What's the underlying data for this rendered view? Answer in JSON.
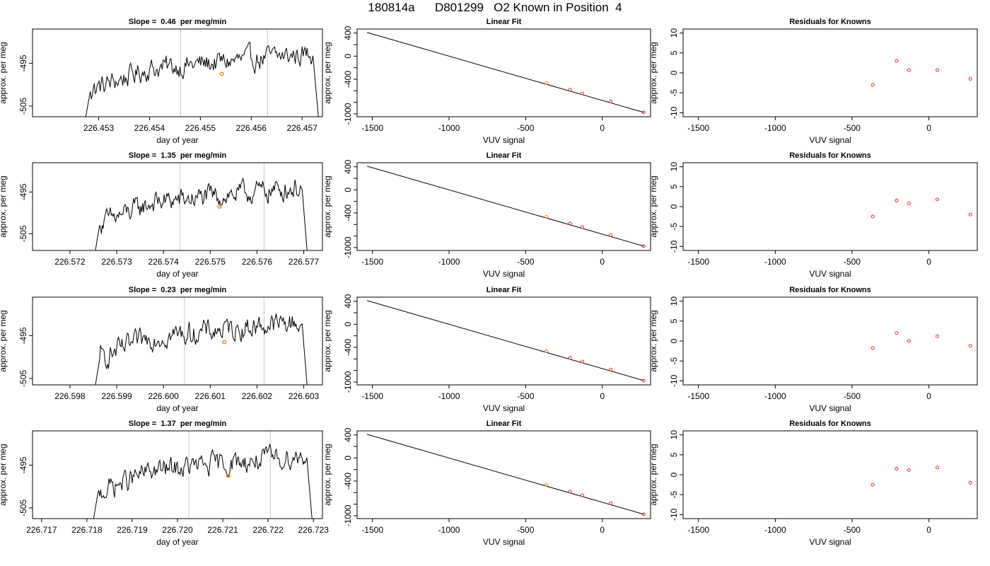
{
  "figure_title": "180814a      D801299   O2 Known in Position  4",
  "colors": {
    "trace": "#000000",
    "vline": "#c8c8c8",
    "point": "#d4352f",
    "highlight": "#e88a1a",
    "axis": "#000000"
  },
  "rows": [
    {
      "time": {
        "title": "Slope =  0.46  per meg/min",
        "xlabel": "day of year",
        "ylabel": "approx. per meg",
        "x_ticks": [
          "226.453",
          "226.454",
          "226.455",
          "226.456",
          "226.457"
        ],
        "x_tick_values": [
          226.453,
          226.454,
          226.455,
          226.456,
          226.457
        ],
        "y_ticks": [
          "-505",
          "-495"
        ],
        "y_tick_values": [
          -505,
          -495
        ],
        "xlim": [
          226.4517,
          226.4574
        ],
        "ylim": [
          -507.5,
          -487.0
        ],
        "vlines": [
          226.45461,
          226.45632
        ],
        "highlight": {
          "x": 226.45542,
          "y": -497.5
        },
        "trace_start": 226.4527,
        "trace_end": 226.45735
      },
      "fit": {
        "title": "Linear Fit",
        "xlabel": "VUV signal",
        "ylabel": "approx. per meg",
        "x_ticks": [
          "-1500",
          "-1000",
          "-500",
          "0"
        ],
        "x_tick_values": [
          -1500,
          -1000,
          -500,
          0
        ],
        "y_ticks": [
          "-1000",
          "-800",
          "-600",
          "-400",
          "-200",
          "0",
          "200",
          "400"
        ],
        "y_labeled": [
          "-1000",
          "-400",
          "0",
          "400"
        ],
        "y_tick_values": [
          -1000,
          -800,
          -600,
          -400,
          -200,
          0,
          200,
          400
        ],
        "xlim": [
          -1600,
          315
        ],
        "ylim": [
          -1050,
          470
        ],
        "line": {
          "x": [
            -1535,
            270
          ],
          "y": [
            410,
            -975
          ]
        },
        "points_x": [
          -365,
          -210,
          -130,
          55,
          270
        ],
        "points_y": [
          -465,
          -581,
          -645,
          -785,
          -975
        ],
        "highlight_index": 0
      },
      "resid": {
        "title": "Residuals for Knowns",
        "xlabel": "VUV signal",
        "ylabel": "approx. per meg",
        "x_ticks": [
          "-1500",
          "-1000",
          "-500",
          "0"
        ],
        "x_tick_values": [
          -1500,
          -1000,
          -500,
          0
        ],
        "y_ticks": [
          "-10",
          "-5",
          "0",
          "5",
          "10"
        ],
        "y_tick_values": [
          -10,
          -5,
          0,
          5,
          10
        ],
        "xlim": [
          -1600,
          315
        ],
        "ylim": [
          -11,
          11
        ],
        "points_x": [
          -365,
          -210,
          -130,
          55,
          270
        ],
        "points_y": [
          -3.0,
          3.0,
          0.7,
          0.7,
          -1.5
        ]
      }
    },
    {
      "time": {
        "title": "Slope =  1.35  per meg/min",
        "xlabel": "day of year",
        "ylabel": "approx. per meg",
        "x_ticks": [
          "226.572",
          "226.573",
          "226.574",
          "226.575",
          "226.576",
          "226.577"
        ],
        "x_tick_values": [
          226.572,
          226.573,
          226.574,
          226.575,
          226.576,
          226.577
        ],
        "y_ticks": [
          "-505",
          "-495"
        ],
        "y_tick_values": [
          -505,
          -495
        ],
        "xlim": [
          226.5712,
          226.5774
        ],
        "ylim": [
          -509.0,
          -488.0
        ],
        "vlines": [
          226.57435,
          226.57615
        ],
        "highlight": {
          "x": 226.5752,
          "y": -498.5
        },
        "trace_start": 226.5725,
        "trace_end": 226.5771
      },
      "fit": {
        "title": "Linear Fit",
        "xlabel": "VUV signal",
        "ylabel": "approx. per meg",
        "x_ticks": [
          "-1500",
          "-1000",
          "-500",
          "0"
        ],
        "x_tick_values": [
          -1500,
          -1000,
          -500,
          0
        ],
        "y_ticks": [
          "-1000",
          "-800",
          "-600",
          "-400",
          "-200",
          "0",
          "200",
          "400"
        ],
        "y_labeled": [
          "-1000",
          "-400",
          "0",
          "400"
        ],
        "y_tick_values": [
          -1000,
          -800,
          -600,
          -400,
          -200,
          0,
          200,
          400
        ],
        "xlim": [
          -1600,
          315
        ],
        "ylim": [
          -1050,
          470
        ],
        "line": {
          "x": [
            -1535,
            270
          ],
          "y": [
            410,
            -975
          ]
        },
        "points_x": [
          -365,
          -210,
          -130,
          55,
          270
        ],
        "points_y": [
          -465,
          -581,
          -645,
          -785,
          -975
        ],
        "highlight_index": 0
      },
      "resid": {
        "title": "Residuals for Knowns",
        "xlabel": "VUV signal",
        "ylabel": "approx. per meg",
        "x_ticks": [
          "-1500",
          "-1000",
          "-500",
          "0"
        ],
        "x_tick_values": [
          -1500,
          -1000,
          -500,
          0
        ],
        "y_ticks": [
          "-10",
          "-5",
          "0",
          "5",
          "10"
        ],
        "y_tick_values": [
          -10,
          -5,
          0,
          5,
          10
        ],
        "xlim": [
          -1600,
          315
        ],
        "ylim": [
          -11,
          11
        ],
        "points_x": [
          -365,
          -210,
          -130,
          55,
          270
        ],
        "points_y": [
          -2.5,
          1.5,
          0.8,
          1.8,
          -2.0
        ]
      }
    },
    {
      "time": {
        "title": "Slope =  0.23  per meg/min",
        "xlabel": "day of year",
        "ylabel": "approx. per meg",
        "x_ticks": [
          "226.598",
          "226.599",
          "226.600",
          "226.601",
          "226.602",
          "226.603"
        ],
        "x_tick_values": [
          226.598,
          226.599,
          226.6,
          226.601,
          226.602,
          226.603
        ],
        "y_ticks": [
          "-505",
          "-495"
        ],
        "y_tick_values": [
          -505,
          -495
        ],
        "xlim": [
          226.5972,
          226.6034
        ],
        "ylim": [
          -506.5,
          -486.0
        ],
        "vlines": [
          226.60045,
          226.60215
        ],
        "highlight": {
          "x": 226.6013,
          "y": -496.5
        },
        "trace_start": 226.5985,
        "trace_end": 226.6031
      },
      "fit": {
        "title": "Linear Fit",
        "xlabel": "VUV signal",
        "ylabel": "approx. per meg",
        "x_ticks": [
          "-1500",
          "-1000",
          "-500",
          "0"
        ],
        "x_tick_values": [
          -1500,
          -1000,
          -500,
          0
        ],
        "y_ticks": [
          "-1000",
          "-800",
          "-600",
          "-400",
          "-200",
          "0",
          "200",
          "400"
        ],
        "y_labeled": [
          "-1000",
          "-400",
          "0",
          "400"
        ],
        "y_tick_values": [
          -1000,
          -800,
          -600,
          -400,
          -200,
          0,
          200,
          400
        ],
        "xlim": [
          -1600,
          315
        ],
        "ylim": [
          -1050,
          470
        ],
        "line": {
          "x": [
            -1535,
            270
          ],
          "y": [
            410,
            -975
          ]
        },
        "points_x": [
          -365,
          -210,
          -130,
          55,
          270
        ],
        "points_y": [
          -465,
          -581,
          -645,
          -785,
          -975
        ],
        "highlight_index": 0
      },
      "resid": {
        "title": "Residuals for Knowns",
        "xlabel": "VUV signal",
        "ylabel": "approx. per meg",
        "x_ticks": [
          "-1500",
          "-1000",
          "-500",
          "0"
        ],
        "x_tick_values": [
          -1500,
          -1000,
          -500,
          0
        ],
        "y_ticks": [
          "-10",
          "-5",
          "0",
          "5",
          "10"
        ],
        "y_tick_values": [
          -10,
          -5,
          0,
          5,
          10
        ],
        "xlim": [
          -1600,
          315
        ],
        "ylim": [
          -11,
          11
        ],
        "points_x": [
          -365,
          -210,
          -130,
          55,
          270
        ],
        "points_y": [
          -1.8,
          2.0,
          0.0,
          1.2,
          -1.2
        ]
      }
    },
    {
      "time": {
        "title": "Slope =  1.37  per meg/min",
        "xlabel": "day of year",
        "ylabel": "approx. per meg",
        "x_ticks": [
          "226.717",
          "226.718",
          "226.719",
          "226.720",
          "226.721",
          "226.722",
          "226.723"
        ],
        "x_tick_values": [
          226.717,
          226.718,
          226.719,
          226.72,
          226.721,
          226.722,
          226.723
        ],
        "y_ticks": [
          "-505",
          "-495"
        ],
        "y_tick_values": [
          -505,
          -495
        ],
        "xlim": [
          226.7168,
          226.7232
        ],
        "ylim": [
          -507.5,
          -487.0
        ],
        "vlines": [
          226.72025,
          226.72205
        ],
        "highlight": {
          "x": 226.72112,
          "y": -497.5
        },
        "trace_start": 226.7181,
        "trace_end": 226.723
      },
      "fit": {
        "title": "Linear Fit",
        "xlabel": "VUV signal",
        "ylabel": "approx. per meg",
        "x_ticks": [
          "-1500",
          "-1000",
          "-500",
          "0"
        ],
        "x_tick_values": [
          -1500,
          -1000,
          -500,
          0
        ],
        "y_ticks": [
          "-1000",
          "-800",
          "-600",
          "-400",
          "-200",
          "0",
          "200",
          "400"
        ],
        "y_labeled": [
          "-1000",
          "-400",
          "0",
          "400"
        ],
        "y_tick_values": [
          -1000,
          -800,
          -600,
          -400,
          -200,
          0,
          200,
          400
        ],
        "xlim": [
          -1600,
          315
        ],
        "ylim": [
          -1050,
          470
        ],
        "line": {
          "x": [
            -1535,
            270
          ],
          "y": [
            410,
            -975
          ]
        },
        "points_x": [
          -365,
          -210,
          -130,
          55,
          270
        ],
        "points_y": [
          -465,
          -581,
          -645,
          -785,
          -975
        ],
        "highlight_index": 0
      },
      "resid": {
        "title": "Residuals for Knowns",
        "xlabel": "VUV signal",
        "ylabel": "approx. per meg",
        "x_ticks": [
          "-1500",
          "-1000",
          "-500",
          "0"
        ],
        "x_tick_values": [
          -1500,
          -1000,
          -500,
          0
        ],
        "y_ticks": [
          "-10",
          "-5",
          "0",
          "5",
          "10"
        ],
        "y_tick_values": [
          -10,
          -5,
          0,
          5,
          10
        ],
        "xlim": [
          -1600,
          315
        ],
        "ylim": [
          -11,
          11
        ],
        "points_x": [
          -365,
          -210,
          -130,
          55,
          270
        ],
        "points_y": [
          -2.5,
          1.5,
          1.2,
          1.8,
          -2.0
        ]
      }
    }
  ]
}
